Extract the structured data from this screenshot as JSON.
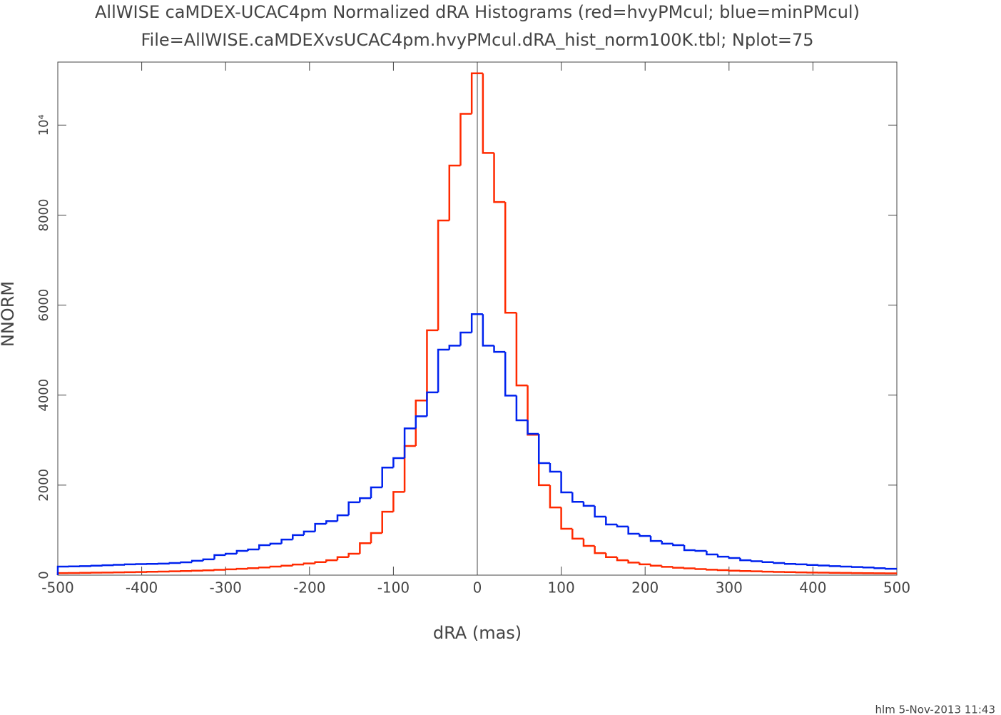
{
  "chart_data": {
    "type": "histogram",
    "title": "AllWISE caMDEX-UCAC4pm Normalized dRA Histograms (red=hvyPMcul; blue=minPMcul)",
    "subtitle": "File=AllWISE.caMDEXvsUCAC4pm.hvyPMcul.dRA_hist_norm100K.tbl; Nplot=75",
    "x_label": "dRA (mas)",
    "y_label": "NNORM",
    "footer": "hlm  5-Nov-2013 11:43",
    "bins": [
      -500,
      -486.67,
      -473.33,
      -460,
      -446.67,
      -433.33,
      -420,
      -406.67,
      -393.33,
      -380,
      -366.67,
      -353.33,
      -340,
      -326.67,
      -313.33,
      -300,
      -286.67,
      -273.33,
      -260,
      -246.67,
      -233.33,
      -220,
      -206.67,
      -193.33,
      -180,
      -166.67,
      -153.33,
      -140,
      -126.67,
      -113.33,
      -100,
      -86.67,
      -73.33,
      -60,
      -46.67,
      -33.33,
      -20,
      -6.67,
      6.67,
      20,
      33.33,
      46.67,
      60,
      73.33,
      86.67,
      100,
      113.33,
      126.67,
      140,
      153.33,
      166.67,
      180,
      193.33,
      206.67,
      220,
      233.33,
      246.67,
      260,
      273.33,
      286.67,
      300,
      313.33,
      326.67,
      340,
      353.33,
      366.67,
      380,
      393.33,
      406.67,
      420,
      433.33,
      446.67,
      460,
      473.33,
      486.67,
      500
    ],
    "series": [
      {
        "color": "#ff2a00",
        "values": [
          45,
          48,
          52,
          55,
          58,
          62,
          66,
          70,
          75,
          80,
          86,
          92,
          100,
          108,
          118,
          128,
          140,
          155,
          170,
          190,
          210,
          235,
          260,
          290,
          330,
          400,
          475,
          710,
          935,
          1410,
          1850,
          2870,
          3880,
          5440,
          7880,
          9100,
          10250,
          11150,
          9380,
          8290,
          5830,
          4215,
          3120,
          2000,
          1505,
          1030,
          810,
          650,
          490,
          400,
          330,
          280,
          240,
          210,
          185,
          165,
          150,
          135,
          120,
          110,
          100,
          92,
          85,
          78,
          72,
          67,
          62,
          58,
          55,
          52,
          49,
          46,
          44,
          42,
          40
        ]
      },
      {
        "color": "#0022ee",
        "values": [
          190,
          195,
          200,
          210,
          220,
          230,
          240,
          245,
          250,
          255,
          270,
          285,
          320,
          350,
          445,
          475,
          540,
          570,
          665,
          700,
          790,
          890,
          970,
          1140,
          1200,
          1330,
          1620,
          1710,
          1950,
          2390,
          2600,
          3260,
          3530,
          4060,
          5010,
          5100,
          5390,
          5800,
          5100,
          4960,
          3990,
          3440,
          3140,
          2490,
          2300,
          1840,
          1630,
          1540,
          1300,
          1125,
          1080,
          920,
          870,
          760,
          700,
          665,
          555,
          540,
          460,
          410,
          380,
          330,
          310,
          290,
          270,
          250,
          240,
          225,
          215,
          200,
          190,
          180,
          170,
          155,
          140
        ]
      }
    ],
    "xlim": [
      -500,
      500
    ],
    "xticks": [
      -500,
      -400,
      -300,
      -200,
      -100,
      0,
      100,
      200,
      300,
      400,
      500
    ],
    "ylim": [
      0,
      11400
    ],
    "yticks": [
      0,
      2000,
      4000,
      6000,
      8000,
      {
        "value": 10000,
        "label": "10⁴"
      }
    ]
  }
}
